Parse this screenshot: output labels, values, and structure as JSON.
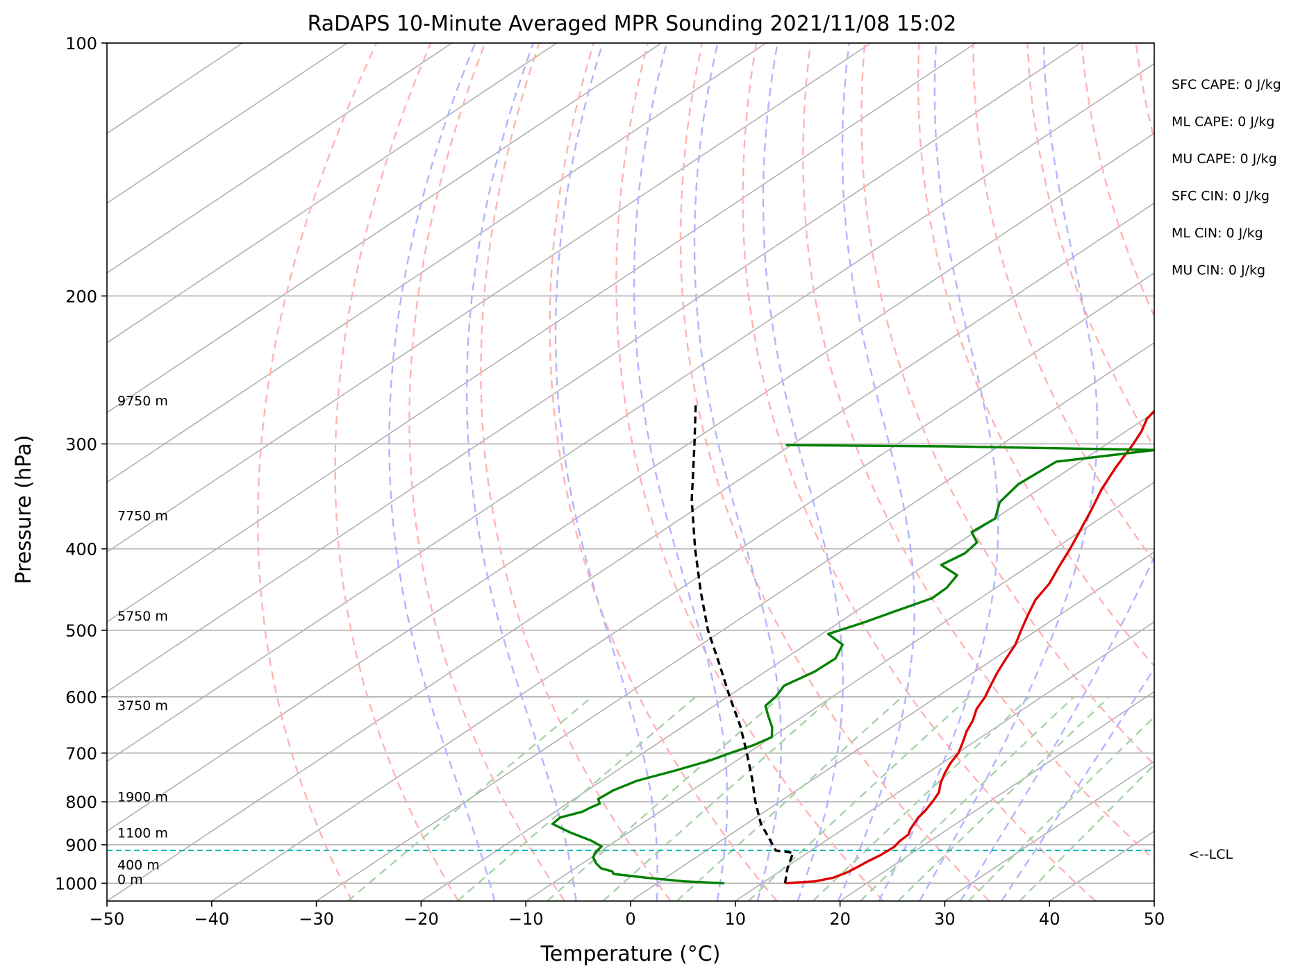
{
  "chart_data": {
    "type": "line",
    "title": "RaDAPS 10-Minute Averaged MPR Sounding 2021/11/08 15:02",
    "xlabel": "Temperature (°C)",
    "ylabel": "Pressure (hPa)",
    "xlim": [
      -50,
      50
    ],
    "ylim": [
      1050,
      100
    ],
    "y_scale": "log",
    "grid": true,
    "x_ticks": [
      -50,
      -40,
      -30,
      -20,
      -10,
      0,
      10,
      20,
      30,
      40,
      50
    ],
    "x_tick_labels": [
      "−50",
      "−40",
      "−30",
      "−20",
      "−10",
      "0",
      "10",
      "20",
      "30",
      "40",
      "50"
    ],
    "y_ticks": [
      100,
      200,
      300,
      400,
      500,
      600,
      700,
      800,
      900,
      1000
    ],
    "y_tick_labels": [
      "100",
      "200",
      "300",
      "400",
      "500",
      "600",
      "700",
      "800",
      "900",
      "1000"
    ],
    "series": [
      {
        "color": "#e00000",
        "points": [
          [
            1000,
            12.2
          ],
          [
            995,
            14.8
          ],
          [
            985,
            16.0
          ],
          [
            970,
            16.6
          ],
          [
            955,
            16.8
          ],
          [
            940,
            17.0
          ],
          [
            925,
            17.3
          ],
          [
            905,
            17.4
          ],
          [
            890,
            17.1
          ],
          [
            875,
            17.0
          ],
          [
            862,
            16.4
          ],
          [
            850,
            16.0
          ],
          [
            835,
            15.5
          ],
          [
            820,
            15.2
          ],
          [
            800,
            14.6
          ],
          [
            780,
            13.9
          ],
          [
            760,
            12.7
          ],
          [
            740,
            11.7
          ],
          [
            720,
            10.8
          ],
          [
            700,
            10.1
          ],
          [
            680,
            9.0
          ],
          [
            660,
            7.8
          ],
          [
            640,
            6.8
          ],
          [
            620,
            5.5
          ],
          [
            600,
            4.6
          ],
          [
            580,
            3.4
          ],
          [
            560,
            2.2
          ],
          [
            540,
            1.1
          ],
          [
            520,
            0.0
          ],
          [
            500,
            -1.5
          ],
          [
            480,
            -3.0
          ],
          [
            460,
            -4.5
          ],
          [
            440,
            -5.5
          ],
          [
            420,
            -7.0
          ],
          [
            400,
            -8.5
          ],
          [
            380,
            -10.2
          ],
          [
            360,
            -12.0
          ],
          [
            340,
            -14.0
          ],
          [
            320,
            -15.8
          ],
          [
            300,
            -17.5
          ],
          [
            290,
            -18.5
          ],
          [
            280,
            -19.8
          ],
          [
            270,
            -20.5
          ]
        ]
      },
      {
        "color": "#008000",
        "points": [
          [
            1000,
            6.4
          ],
          [
            995,
            2.3
          ],
          [
            985,
            -1.8
          ],
          [
            975,
            -5.5
          ],
          [
            968,
            -6.0
          ],
          [
            960,
            -7.5
          ],
          [
            948,
            -8.6
          ],
          [
            932,
            -9.8
          ],
          [
            920,
            -10.3
          ],
          [
            904,
            -10.6
          ],
          [
            890,
            -12.4
          ],
          [
            870,
            -15.6
          ],
          [
            850,
            -18.5
          ],
          [
            835,
            -18.7
          ],
          [
            822,
            -17.4
          ],
          [
            812,
            -17.2
          ],
          [
            804,
            -16.9
          ],
          [
            794,
            -17.7
          ],
          [
            775,
            -17.5
          ],
          [
            755,
            -16.6
          ],
          [
            735,
            -14.5
          ],
          [
            715,
            -12.6
          ],
          [
            700,
            -11.7
          ],
          [
            685,
            -10.6
          ],
          [
            670,
            -10.0
          ],
          [
            652,
            -11.4
          ],
          [
            632,
            -13.4
          ],
          [
            615,
            -15.1
          ],
          [
            600,
            -15.4
          ],
          [
            582,
            -16.2
          ],
          [
            560,
            -15.3
          ],
          [
            540,
            -15.2
          ],
          [
            520,
            -16.5
          ],
          [
            505,
            -19.4
          ],
          [
            490,
            -17.7
          ],
          [
            475,
            -16.3
          ],
          [
            458,
            -14.6
          ],
          [
            445,
            -14.7
          ],
          [
            430,
            -15.5
          ],
          [
            418,
            -18.5
          ],
          [
            405,
            -17.9
          ],
          [
            393,
            -18.3
          ],
          [
            382,
            -20.3
          ],
          [
            368,
            -20.0
          ],
          [
            352,
            -21.9
          ],
          [
            335,
            -22.7
          ],
          [
            315,
            -22.3
          ],
          [
            305,
            -14.5
          ],
          [
            302,
            -35.0
          ],
          [
            301,
            -50.5
          ]
        ]
      },
      {
        "color": "#000000",
        "dashed": true,
        "points": [
          [
            1000,
            12.2
          ],
          [
            960,
            10.3
          ],
          [
            920,
            8.6
          ],
          [
            914,
            6.6
          ],
          [
            880,
            3.9
          ],
          [
            850,
            1.4
          ],
          [
            800,
            -2.3
          ],
          [
            750,
            -6.0
          ],
          [
            700,
            -10.1
          ],
          [
            650,
            -14.6
          ],
          [
            600,
            -19.8
          ],
          [
            550,
            -25.3
          ],
          [
            500,
            -31.4
          ],
          [
            450,
            -37.6
          ],
          [
            400,
            -44.3
          ],
          [
            350,
            -51.6
          ],
          [
            300,
            -59.4
          ],
          [
            270,
            -64.8
          ]
        ]
      }
    ],
    "lcl_pressure": 914,
    "lcl_label": "<--LCL",
    "height_labels": [
      {
        "text": "9750 m",
        "p": 270
      },
      {
        "text": "7750 m",
        "p": 370
      },
      {
        "text": "5750 m",
        "p": 487
      },
      {
        "text": "3750 m",
        "p": 622
      },
      {
        "text": "1900 m",
        "p": 799
      },
      {
        "text": "1100 m",
        "p": 882
      },
      {
        "text": "400 m",
        "p": 963
      },
      {
        "text": "0 m",
        "p": 1002
      }
    ],
    "parameters": [
      "SFC CAPE: 0 J/kg",
      "ML CAPE: 0 J/kg",
      "MU CAPE: 0 J/kg",
      "SFC CIN: 0 J/kg",
      "ML CIN: 0 J/kg",
      "MU CIN: 0 J/kg"
    ],
    "colors": {
      "isotherm": "#b0b0b0",
      "isobar": "#b0b0b0",
      "dry_adiabat": "#ffb3b3",
      "moist_adiabat": "#b3b3ff",
      "mixing_ratio": "#a6d3a6",
      "lcl_line": "#00b4b4"
    }
  }
}
